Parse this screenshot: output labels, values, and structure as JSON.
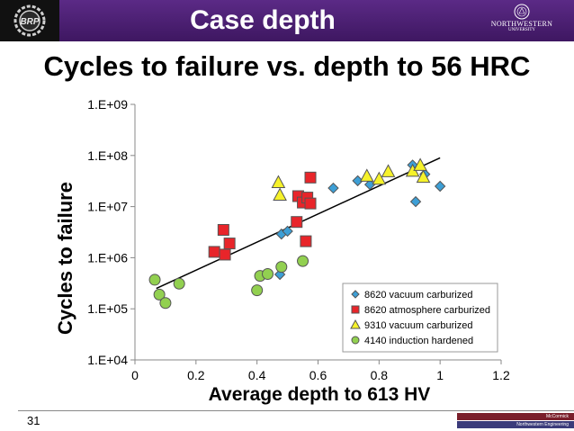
{
  "header": {
    "title": "Case depth",
    "left_logo_text": "BRP",
    "right_logo_name": "NORTHWESTERN",
    "right_logo_sub": "UNIVERSITY",
    "colors": {
      "bar": "#4b2079",
      "left_logo_bg": "#111111"
    }
  },
  "slide_title": "Cycles to failure vs. depth to 56 HRC",
  "footer": {
    "page_number": "31",
    "brand_1": "McCormick",
    "brand_2": "Northwestern Engineering"
  },
  "chart_data": {
    "type": "scatter",
    "title": "",
    "xlabel": "Average depth to 613 HV",
    "ylabel": "Cycles to failure",
    "xlim": [
      0,
      1.2
    ],
    "ylim_log10": [
      4,
      9
    ],
    "y_scale": "log",
    "x_ticks": [
      "0",
      "0.2",
      "0.4",
      "0.6",
      "0.8",
      "1",
      "1.2"
    ],
    "x_tick_values": [
      0,
      0.2,
      0.4,
      0.6,
      0.8,
      1.0,
      1.2
    ],
    "y_ticks": [
      "1.E+04",
      "1.E+05",
      "1.E+06",
      "1.E+07",
      "1.E+08",
      "1.E+09"
    ],
    "y_tick_values": [
      10000,
      100000,
      1000000,
      10000000,
      100000000,
      1000000000
    ],
    "legend_position": "lower-right",
    "series": [
      {
        "name": "8620 vacuum carburized",
        "marker": "diamond",
        "color": "#3d9fd6",
        "points": [
          [
            0.475,
            470000
          ],
          [
            0.48,
            2900000
          ],
          [
            0.5,
            3300000
          ],
          [
            0.65,
            23000000
          ],
          [
            0.73,
            32000000
          ],
          [
            0.77,
            27000000
          ],
          [
            0.91,
            65000000
          ],
          [
            0.92,
            12500000
          ],
          [
            0.95,
            43000000
          ],
          [
            1.0,
            25000000
          ]
        ]
      },
      {
        "name": "8620 atmosphere carburized",
        "marker": "square",
        "color": "#e8252a",
        "points": [
          [
            0.26,
            1300000
          ],
          [
            0.29,
            3500000
          ],
          [
            0.295,
            1150000
          ],
          [
            0.31,
            1900000
          ],
          [
            0.53,
            5000000
          ],
          [
            0.535,
            16000000
          ],
          [
            0.55,
            12000000
          ],
          [
            0.56,
            2100000
          ],
          [
            0.565,
            15000000
          ],
          [
            0.575,
            11500000
          ],
          [
            0.575,
            37000000
          ]
        ]
      },
      {
        "name": "9310 vacuum carburized",
        "marker": "triangle",
        "color": "#f6f22a",
        "points": [
          [
            0.47,
            30000000
          ],
          [
            0.475,
            17000000
          ],
          [
            0.76,
            40000000
          ],
          [
            0.8,
            35000000
          ],
          [
            0.83,
            49000000
          ],
          [
            0.91,
            50000000
          ],
          [
            0.935,
            65000000
          ],
          [
            0.945,
            38000000
          ]
        ]
      },
      {
        "name": "4140 induction hardened",
        "marker": "circle",
        "color": "#92d050",
        "points": [
          [
            0.065,
            370000
          ],
          [
            0.08,
            190000
          ],
          [
            0.1,
            130000
          ],
          [
            0.145,
            310000
          ],
          [
            0.4,
            230000
          ],
          [
            0.41,
            440000
          ],
          [
            0.435,
            480000
          ],
          [
            0.48,
            660000
          ],
          [
            0.55,
            860000
          ]
        ]
      }
    ],
    "trendline": {
      "type": "exponential",
      "from": [
        0.07,
        250000
      ],
      "to": [
        1.0,
        90000000
      ],
      "color": "#000000"
    }
  }
}
